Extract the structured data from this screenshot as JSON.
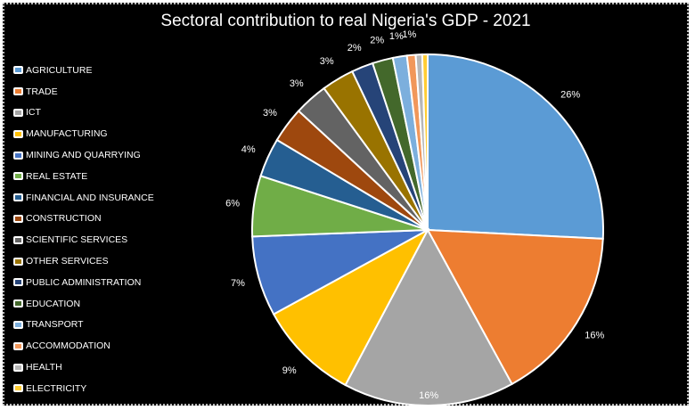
{
  "chart_data": {
    "type": "pie",
    "title": "Sectoral contribution to real Nigeria's GDP - 2021",
    "legend_position": "left",
    "categories": [
      "AGRICULTURE",
      "TRADE",
      "ICT",
      "MANUFACTURING",
      "MINING AND QUARRYING",
      "REAL ESTATE",
      "FINANCIAL AND INSURANCE",
      "CONSTRUCTION",
      "SCIENTIFIC SERVICES",
      "OTHER SERVICES",
      "PUBLIC ADMINISTRATION",
      "EDUCATION",
      "TRANSPORT",
      "ACCOMMODATION",
      "HEALTH",
      "ELECTRICITY"
    ],
    "values": [
      25.9,
      16.3,
      15.8,
      9.3,
      7.4,
      5.6,
      3.6,
      3.3,
      3.1,
      3.0,
      2.0,
      1.9,
      1.3,
      0.8,
      0.6,
      0.5
    ],
    "data_labels": [
      "26%",
      "16%",
      "16%",
      "9%",
      "7%",
      "6%",
      "4%",
      "3%",
      "3%",
      "3%",
      "2%",
      "2%",
      "1%",
      "1%",
      "",
      ""
    ],
    "colors": [
      "#5B9BD5",
      "#ED7D31",
      "#A5A5A5",
      "#FFC000",
      "#4472C4",
      "#70AD47",
      "#255E91",
      "#9E480E",
      "#636363",
      "#997300",
      "#264478",
      "#43682B",
      "#7CAFDD",
      "#F1975A",
      "#B7B7B7",
      "#FFCD33"
    ]
  }
}
